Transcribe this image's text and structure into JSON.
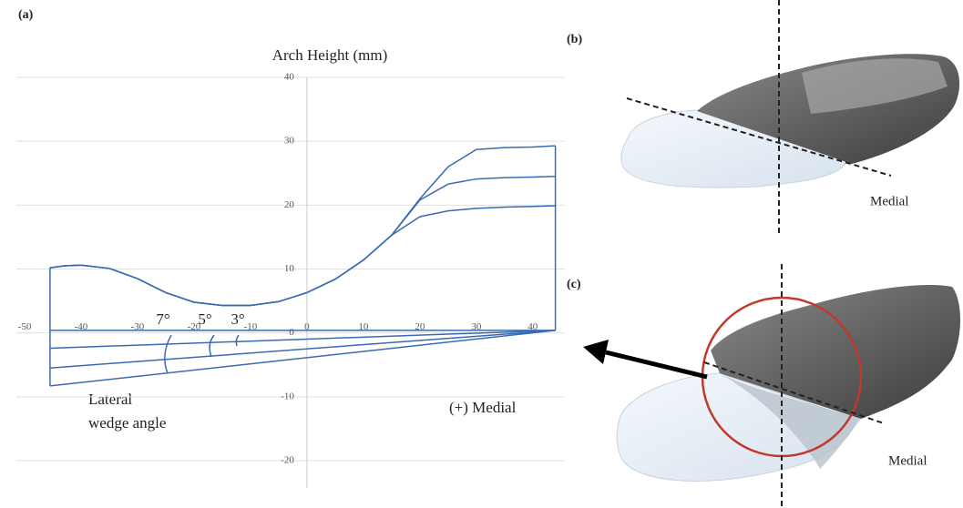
{
  "panel_labels": [
    "(a)",
    "(b)",
    "(c)"
  ],
  "chart_data": {
    "type": "line",
    "title": "Arch Height (mm)",
    "x_annotation": "(+) Medial",
    "wedge_label": [
      "Lateral",
      "wedge angle"
    ],
    "angle_labels": [
      "7°",
      "5°",
      "3°"
    ],
    "xlim": [
      -52,
      46
    ],
    "ylim": [
      -20,
      40
    ],
    "xticks": [
      -50,
      -40,
      -30,
      -20,
      -10,
      0,
      10,
      20,
      30,
      40
    ],
    "yticks": [
      -20,
      -10,
      0,
      10,
      20,
      30,
      40
    ],
    "grid": true,
    "series": [
      {
        "color": "#3a6bb0",
        "x": [
          -45.5,
          -43,
          -40,
          -35,
          -30,
          -25,
          -20,
          -15,
          -10,
          -5,
          0,
          5,
          10,
          15,
          20,
          25,
          30,
          35,
          40,
          44
        ],
        "values": [
          10.2,
          10.5,
          10.6,
          10.1,
          8.5,
          6.3,
          4.8,
          4.3,
          4.3,
          4.9,
          6.3,
          8.4,
          11.4,
          15.3,
          18.2,
          19.1,
          19.5,
          19.7,
          19.8,
          19.9
        ]
      },
      {
        "color": "#3a6bb0",
        "x": [
          -45.5,
          -43,
          -40,
          -35,
          -30,
          -25,
          -20,
          -15,
          -10,
          -5,
          0,
          5,
          10,
          15,
          20,
          25,
          30,
          35,
          40,
          44
        ],
        "values": [
          10.2,
          10.5,
          10.6,
          10.1,
          8.5,
          6.3,
          4.8,
          4.3,
          4.3,
          4.9,
          6.3,
          8.4,
          11.4,
          15.3,
          20.8,
          23.3,
          24.1,
          24.3,
          24.4,
          24.5
        ]
      },
      {
        "color": "#3a6bb0",
        "x": [
          -45.5,
          -43,
          -40,
          -35,
          -30,
          -25,
          -20,
          -15,
          -10,
          -5,
          0,
          5,
          10,
          15,
          20,
          25,
          30,
          35,
          40,
          44
        ],
        "values": [
          10.2,
          10.5,
          10.6,
          10.1,
          8.5,
          6.3,
          4.8,
          4.3,
          4.3,
          4.9,
          6.3,
          8.4,
          11.4,
          15.3,
          21.0,
          26.0,
          28.7,
          29.0,
          29.1,
          29.3
        ]
      },
      {
        "color": "#3a6bb0",
        "x": [
          -45.5,
          44
        ],
        "values": [
          0.4,
          0.4
        ]
      },
      {
        "color": "#3a6bb0",
        "x": [
          -45.5,
          44
        ],
        "values": [
          -2.4,
          0.4
        ]
      },
      {
        "color": "#3a6bb0",
        "x": [
          -45.5,
          44
        ],
        "values": [
          -5.5,
          0.4
        ]
      },
      {
        "color": "#3a6bb0",
        "x": [
          -45.5,
          44
        ],
        "values": [
          -8.3,
          0.4
        ]
      }
    ]
  },
  "image_labels": {
    "b": "Medial",
    "c": "Medial"
  }
}
